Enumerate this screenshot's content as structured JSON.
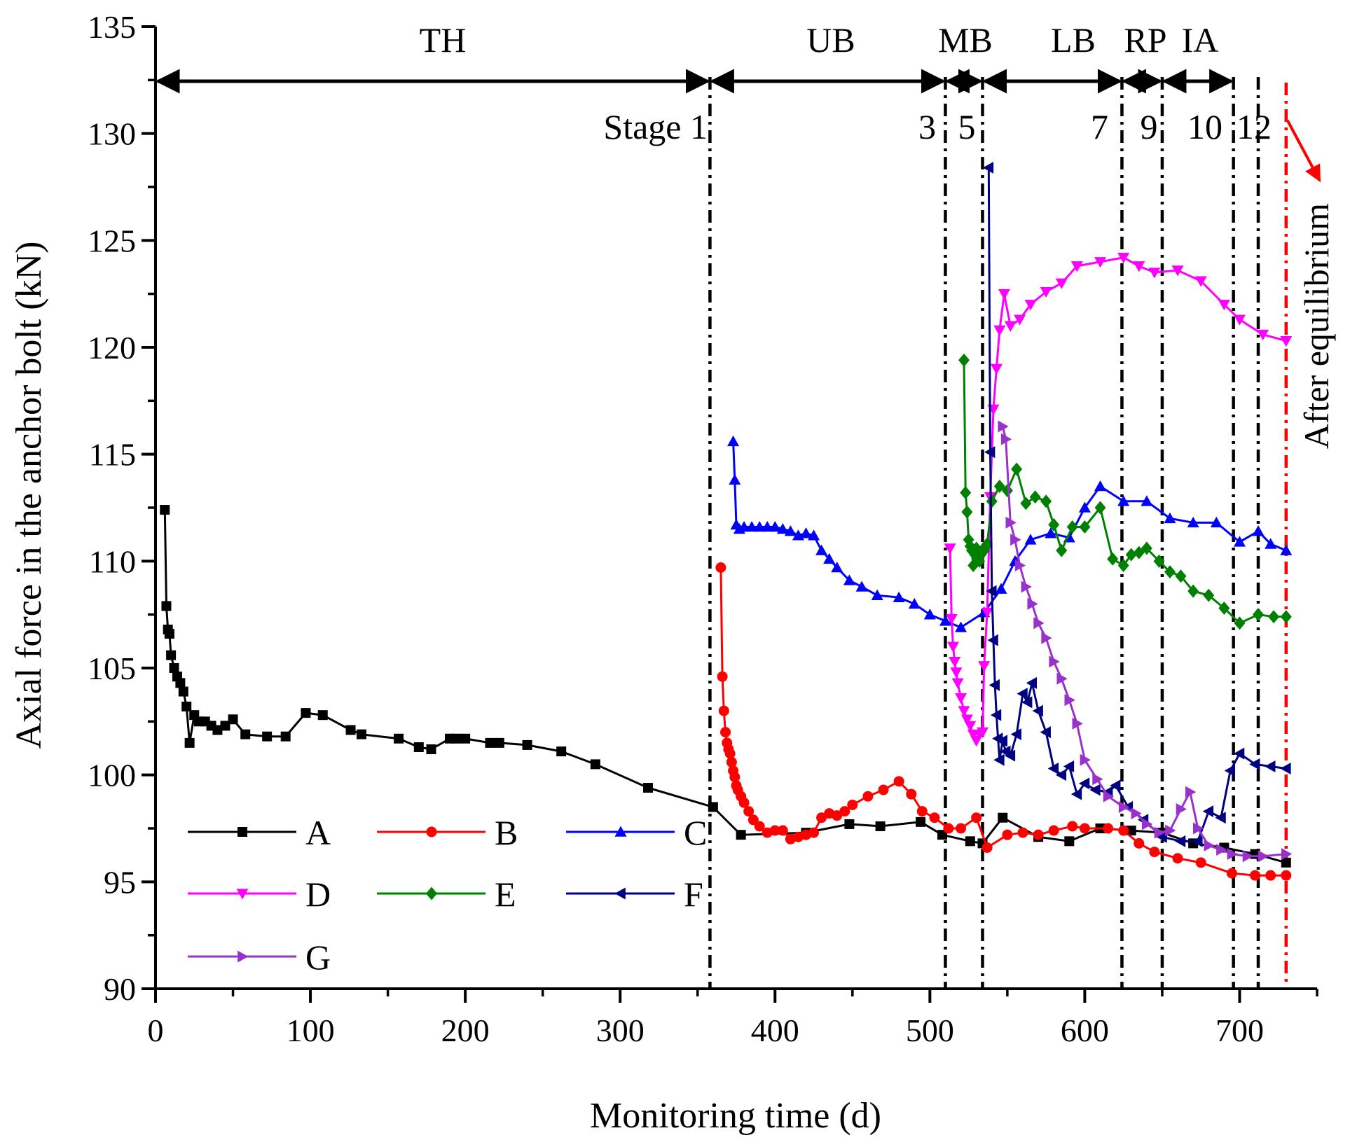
{
  "chart_data": {
    "type": "line",
    "title": "",
    "xlabel": "Monitoring time (d)",
    "ylabel": "Axial force in the anchor bolt (kN)",
    "xlim": [
      0,
      750
    ],
    "ylim": [
      90,
      135
    ],
    "xticks": [
      "0",
      "100",
      "200",
      "300",
      "400",
      "500",
      "600",
      "700"
    ],
    "yticks": [
      "90",
      "95",
      "100",
      "105",
      "110",
      "115",
      "120",
      "125",
      "130",
      "135"
    ],
    "legend_position": "bottom-left",
    "stage_lines": [
      {
        "x": 358,
        "label": "Stage 1"
      },
      {
        "x": 510,
        "label": "3"
      },
      {
        "x": 534,
        "label": "5"
      },
      {
        "x": 624,
        "label": "7"
      },
      {
        "x": 650,
        "label": "9"
      },
      {
        "x": 696,
        "label": "10"
      },
      {
        "x": 712,
        "label": "12"
      },
      {
        "x": 730,
        "label": "After equilibrium",
        "color": "#ff0000"
      }
    ],
    "phases": [
      {
        "label": "TH",
        "x_start": 0,
        "x_end": 358
      },
      {
        "label": "UB",
        "x_start": 358,
        "x_end": 510
      },
      {
        "label": "MB",
        "x_start": 510,
        "x_end": 534
      },
      {
        "label": "LB",
        "x_start": 534,
        "x_end": 624
      },
      {
        "label": "RP",
        "x_start": 624,
        "x_end": 650
      },
      {
        "label": "IA",
        "x_start": 650,
        "x_end": 696
      }
    ],
    "series": [
      {
        "name": "A",
        "color": "#000000",
        "marker": "square",
        "x": [
          6,
          7,
          8,
          9,
          10,
          12,
          14,
          16,
          18,
          20,
          22,
          25,
          28,
          32,
          36,
          40,
          45,
          50,
          58,
          72,
          84,
          97,
          108,
          126,
          133,
          157,
          170,
          178,
          190,
          194,
          200,
          216,
          222,
          240,
          262,
          284,
          318,
          360,
          378,
          420,
          448,
          468,
          494,
          508,
          526,
          534,
          547,
          570,
          590,
          610,
          630,
          650,
          670,
          690,
          710,
          730
        ],
        "y": [
          112.4,
          107.9,
          106.8,
          106.6,
          105.6,
          105.0,
          104.6,
          104.3,
          103.9,
          103.2,
          101.5,
          102.8,
          102.5,
          102.5,
          102.3,
          102.1,
          102.3,
          102.6,
          101.9,
          101.8,
          101.8,
          102.9,
          102.8,
          102.1,
          101.9,
          101.7,
          101.3,
          101.2,
          101.7,
          101.7,
          101.7,
          101.5,
          101.5,
          101.4,
          101.1,
          100.5,
          99.4,
          98.5,
          97.2,
          97.3,
          97.7,
          97.6,
          97.8,
          97.2,
          96.9,
          96.8,
          98.0,
          97.1,
          96.9,
          97.5,
          97.4,
          97.3,
          96.8,
          96.6,
          96.3,
          95.9
        ]
      },
      {
        "name": "B",
        "color": "#ff0000",
        "marker": "circle",
        "x": [
          365,
          366,
          367,
          368,
          369,
          370,
          371,
          372,
          373,
          374,
          375,
          376,
          378,
          380,
          383,
          386,
          390,
          395,
          400,
          405,
          410,
          415,
          420,
          425,
          430,
          435,
          440,
          445,
          450,
          460,
          470,
          480,
          488,
          495,
          503,
          512,
          520,
          530,
          537,
          550,
          560,
          570,
          580,
          592,
          600,
          615,
          625,
          635,
          645,
          660,
          675,
          695,
          710,
          720,
          730
        ],
        "y": [
          109.7,
          104.6,
          103.0,
          102.0,
          101.5,
          101.2,
          101.0,
          100.6,
          100.2,
          99.9,
          99.5,
          99.3,
          99.0,
          98.7,
          98.3,
          97.9,
          97.6,
          97.3,
          97.4,
          97.4,
          97.0,
          97.1,
          97.2,
          97.3,
          98.0,
          98.2,
          98.1,
          98.3,
          98.6,
          99.0,
          99.3,
          99.7,
          99.1,
          98.3,
          98.0,
          97.5,
          97.5,
          98.0,
          96.6,
          97.2,
          97.3,
          97.2,
          97.4,
          97.6,
          97.5,
          97.5,
          97.4,
          96.8,
          96.4,
          96.1,
          95.9,
          95.4,
          95.3,
          95.3,
          95.3
        ]
      },
      {
        "name": "C",
        "color": "#0000ff",
        "marker": "triangle-up",
        "x": [
          373,
          374,
          375,
          377,
          380,
          385,
          390,
          395,
          400,
          405,
          410,
          415,
          420,
          425,
          430,
          435,
          440,
          448,
          456,
          466,
          480,
          490,
          500,
          510,
          520,
          535,
          546,
          555,
          565,
          578,
          590,
          600,
          610,
          625,
          640,
          655,
          670,
          685,
          700,
          712,
          720,
          730
        ],
        "y": [
          115.6,
          113.8,
          111.7,
          111.5,
          111.6,
          111.6,
          111.6,
          111.6,
          111.6,
          111.5,
          111.4,
          111.2,
          111.3,
          111.2,
          110.5,
          110.1,
          109.7,
          109.1,
          108.8,
          108.4,
          108.3,
          108.0,
          107.5,
          107.2,
          106.9,
          107.6,
          108.7,
          110.0,
          111.0,
          111.3,
          111.1,
          112.5,
          113.5,
          112.8,
          112.8,
          112.0,
          111.8,
          111.8,
          110.9,
          111.4,
          110.8,
          110.5
        ]
      },
      {
        "name": "D",
        "color": "#ff00ff",
        "marker": "triangle-down",
        "x": [
          513,
          514,
          515,
          516,
          517,
          518,
          520,
          522,
          524,
          526,
          528,
          530,
          532,
          534,
          535,
          537,
          539,
          541,
          543,
          545,
          548,
          552,
          558,
          565,
          575,
          585,
          595,
          610,
          625,
          635,
          645,
          660,
          675,
          690,
          700,
          715,
          730
        ],
        "y": [
          110.6,
          107.3,
          106.0,
          105.3,
          104.8,
          104.3,
          103.6,
          103.0,
          102.6,
          102.3,
          101.9,
          101.6,
          101.9,
          102.0,
          105.1,
          107.6,
          113.0,
          117.1,
          119.0,
          120.8,
          122.5,
          121.0,
          121.3,
          122.0,
          122.6,
          123.0,
          123.8,
          124.0,
          124.2,
          123.8,
          123.5,
          123.6,
          123.1,
          122.0,
          121.3,
          120.6,
          120.3
        ]
      },
      {
        "name": "E",
        "color": "#008000",
        "marker": "diamond",
        "x": [
          522,
          523,
          524,
          525,
          526,
          527,
          528,
          529,
          530,
          531,
          532,
          533,
          534,
          535,
          536,
          537,
          540,
          545,
          550,
          556,
          562,
          568,
          575,
          580,
          585,
          592,
          600,
          610,
          618,
          625,
          630,
          635,
          640,
          648,
          655,
          662,
          670,
          680,
          690,
          700,
          712,
          722,
          730
        ],
        "y": [
          119.4,
          113.2,
          112.3,
          111.0,
          110.7,
          110.5,
          109.8,
          110.3,
          110.6,
          110.1,
          110.0,
          110.3,
          110.5,
          110.5,
          110.7,
          110.8,
          112.8,
          113.5,
          113.3,
          114.3,
          112.7,
          113.0,
          112.8,
          111.7,
          110.5,
          111.6,
          111.6,
          112.5,
          110.1,
          109.8,
          110.3,
          110.4,
          110.6,
          110.0,
          109.5,
          109.3,
          108.6,
          108.4,
          107.8,
          107.1,
          107.5,
          107.4,
          107.4
        ]
      },
      {
        "name": "F",
        "color": "#000080",
        "marker": "triangle-left",
        "x": [
          538,
          539,
          540,
          541,
          542,
          543,
          544,
          545,
          547,
          549,
          552,
          556,
          560,
          563,
          566,
          570,
          575,
          580,
          585,
          590,
          595,
          600,
          607,
          615,
          620,
          628,
          638,
          650,
          662,
          673,
          680,
          688,
          694,
          700,
          710,
          720,
          730
        ],
        "y": [
          128.4,
          115.1,
          108.6,
          106.3,
          104.2,
          102.8,
          101.7,
          100.7,
          101.6,
          101.1,
          100.9,
          101.9,
          103.8,
          103.4,
          104.3,
          103.0,
          102.0,
          100.3,
          100.0,
          100.4,
          99.1,
          99.6,
          99.3,
          99.2,
          99.5,
          98.5,
          97.9,
          97.1,
          96.9,
          96.9,
          98.3,
          98.0,
          100.2,
          101.0,
          100.5,
          100.4,
          100.3
        ]
      },
      {
        "name": "G",
        "color": "#9932cc",
        "marker": "triangle-right",
        "x": [
          547,
          549,
          552,
          555,
          558,
          562,
          566,
          570,
          575,
          580,
          585,
          590,
          595,
          600,
          608,
          615,
          625,
          633,
          640,
          648,
          655,
          662,
          668,
          673,
          680,
          688,
          695,
          705,
          715,
          730
        ],
        "y": [
          116.3,
          115.7,
          111.8,
          111.0,
          109.8,
          108.8,
          108.0,
          107.1,
          106.4,
          105.3,
          104.5,
          103.5,
          102.4,
          100.7,
          99.8,
          99.0,
          98.5,
          98.2,
          97.7,
          97.3,
          97.4,
          98.4,
          99.2,
          97.5,
          96.7,
          96.5,
          96.3,
          96.2,
          96.2,
          96.3
        ]
      }
    ]
  }
}
